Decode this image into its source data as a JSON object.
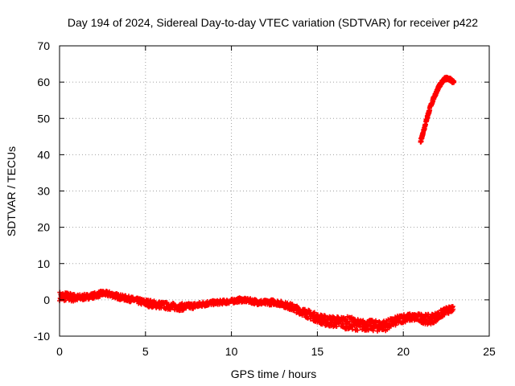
{
  "chart_data": {
    "type": "scatter",
    "title": "Day 194 of 2024, Sidereal Day-to-day VTEC variation (SDTVAR) for receiver p422",
    "xlabel": "GPS time / hours",
    "ylabel": "SDTVAR / TECUs",
    "xlim": [
      0,
      25
    ],
    "ylim": [
      -10,
      70
    ],
    "xticks": [
      0,
      5,
      10,
      15,
      20,
      25
    ],
    "yticks": [
      -10,
      0,
      10,
      20,
      30,
      40,
      50,
      60,
      70
    ],
    "grid": true,
    "series": [
      {
        "color": "#ff0000",
        "band": [
          {
            "x": 0.0,
            "y": 1.0,
            "spread": 2.5
          },
          {
            "x": 0.5,
            "y": 0.8,
            "spread": 2.5
          },
          {
            "x": 1.0,
            "y": 0.5,
            "spread": 2.0
          },
          {
            "x": 1.5,
            "y": 0.8,
            "spread": 1.5
          },
          {
            "x": 2.0,
            "y": 1.2,
            "spread": 1.5
          },
          {
            "x": 2.5,
            "y": 1.8,
            "spread": 1.5
          },
          {
            "x": 3.0,
            "y": 1.5,
            "spread": 1.5
          },
          {
            "x": 3.5,
            "y": 0.8,
            "spread": 1.5
          },
          {
            "x": 4.0,
            "y": 0.3,
            "spread": 1.5
          },
          {
            "x": 4.5,
            "y": -0.2,
            "spread": 1.5
          },
          {
            "x": 5.0,
            "y": -0.8,
            "spread": 2.0
          },
          {
            "x": 5.5,
            "y": -1.2,
            "spread": 2.0
          },
          {
            "x": 6.0,
            "y": -1.5,
            "spread": 2.0
          },
          {
            "x": 6.5,
            "y": -1.8,
            "spread": 2.0
          },
          {
            "x": 7.0,
            "y": -2.0,
            "spread": 2.0
          },
          {
            "x": 7.5,
            "y": -1.8,
            "spread": 1.8
          },
          {
            "x": 8.0,
            "y": -1.5,
            "spread": 1.5
          },
          {
            "x": 8.5,
            "y": -1.0,
            "spread": 1.5
          },
          {
            "x": 9.0,
            "y": -0.8,
            "spread": 1.2
          },
          {
            "x": 9.5,
            "y": -0.6,
            "spread": 1.2
          },
          {
            "x": 10.0,
            "y": -0.4,
            "spread": 1.2
          },
          {
            "x": 10.5,
            "y": 0.0,
            "spread": 1.2
          },
          {
            "x": 11.0,
            "y": -0.2,
            "spread": 1.2
          },
          {
            "x": 11.5,
            "y": -0.6,
            "spread": 1.5
          },
          {
            "x": 12.0,
            "y": -0.8,
            "spread": 1.5
          },
          {
            "x": 12.5,
            "y": -0.6,
            "spread": 1.5
          },
          {
            "x": 13.0,
            "y": -1.2,
            "spread": 1.5
          },
          {
            "x": 13.5,
            "y": -2.0,
            "spread": 2.0
          },
          {
            "x": 14.0,
            "y": -3.0,
            "spread": 2.0
          },
          {
            "x": 14.5,
            "y": -4.0,
            "spread": 2.5
          },
          {
            "x": 15.0,
            "y": -5.0,
            "spread": 2.5
          },
          {
            "x": 15.5,
            "y": -5.8,
            "spread": 3.0
          },
          {
            "x": 16.0,
            "y": -6.0,
            "spread": 3.0
          },
          {
            "x": 16.5,
            "y": -6.2,
            "spread": 3.5
          },
          {
            "x": 17.0,
            "y": -6.5,
            "spread": 3.5
          },
          {
            "x": 17.5,
            "y": -7.0,
            "spread": 3.0
          },
          {
            "x": 18.0,
            "y": -7.0,
            "spread": 3.0
          },
          {
            "x": 18.5,
            "y": -7.2,
            "spread": 3.0
          },
          {
            "x": 19.0,
            "y": -7.0,
            "spread": 3.0
          },
          {
            "x": 19.5,
            "y": -6.0,
            "spread": 2.5
          },
          {
            "x": 20.0,
            "y": -5.0,
            "spread": 2.5
          },
          {
            "x": 20.5,
            "y": -4.8,
            "spread": 2.0
          },
          {
            "x": 21.0,
            "y": -5.0,
            "spread": 2.5
          },
          {
            "x": 21.5,
            "y": -5.5,
            "spread": 3.0
          },
          {
            "x": 22.0,
            "y": -4.5,
            "spread": 2.5
          },
          {
            "x": 22.5,
            "y": -3.0,
            "spread": 2.0
          },
          {
            "x": 22.9,
            "y": -2.5,
            "spread": 1.5
          }
        ]
      },
      {
        "color": "#ff0000",
        "band": [
          {
            "x": 21.0,
            "y": 43.5,
            "spread": 1.2
          },
          {
            "x": 21.2,
            "y": 47.0,
            "spread": 1.2
          },
          {
            "x": 21.4,
            "y": 50.5,
            "spread": 1.2
          },
          {
            "x": 21.6,
            "y": 53.5,
            "spread": 1.0
          },
          {
            "x": 21.8,
            "y": 56.0,
            "spread": 1.0
          },
          {
            "x": 22.0,
            "y": 58.0,
            "spread": 1.0
          },
          {
            "x": 22.2,
            "y": 59.8,
            "spread": 1.0
          },
          {
            "x": 22.4,
            "y": 60.8,
            "spread": 1.0
          },
          {
            "x": 22.6,
            "y": 61.0,
            "spread": 1.0
          },
          {
            "x": 22.8,
            "y": 60.5,
            "spread": 1.0
          },
          {
            "x": 22.95,
            "y": 59.8,
            "spread": 1.0
          }
        ]
      }
    ]
  }
}
